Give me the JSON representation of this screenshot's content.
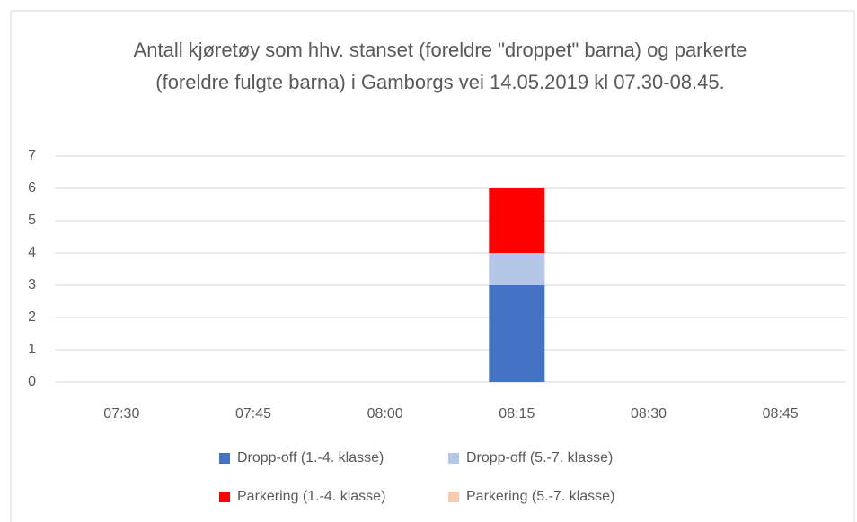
{
  "chart_data": {
    "type": "stacked_bar",
    "title": "Antall kjøretøy som hhv. stanset (foreldre \"droppet\" barna) og parkerte (foreldre fulgte barna) i Gamborgs vei 14.05.2019 kl 07.30-08.45.",
    "categories": [
      "07:30",
      "07:45",
      "08:00",
      "08:15",
      "08:30",
      "08:45"
    ],
    "series": [
      {
        "name": "Dropp-off (1.-4. klasse)",
        "color": "#4472c4",
        "values": [
          0,
          0,
          0,
          3,
          0,
          0
        ]
      },
      {
        "name": "Dropp-off (5.-7. klasse)",
        "color": "#b4c7e7",
        "values": [
          0,
          0,
          0,
          1,
          0,
          0
        ]
      },
      {
        "name": "Parkering (1.-4. klasse)",
        "color": "#ff0000",
        "values": [
          0,
          0,
          0,
          2,
          0,
          0
        ]
      },
      {
        "name": "Parkering (5.-7. klasse)",
        "color": "#f8cbad",
        "values": [
          0,
          0,
          0,
          0,
          0,
          0
        ]
      }
    ],
    "ylim": [
      0,
      7
    ],
    "yticks": [
      0,
      1,
      2,
      3,
      4,
      5,
      6,
      7
    ],
    "grid": true,
    "legend": "bottom"
  }
}
